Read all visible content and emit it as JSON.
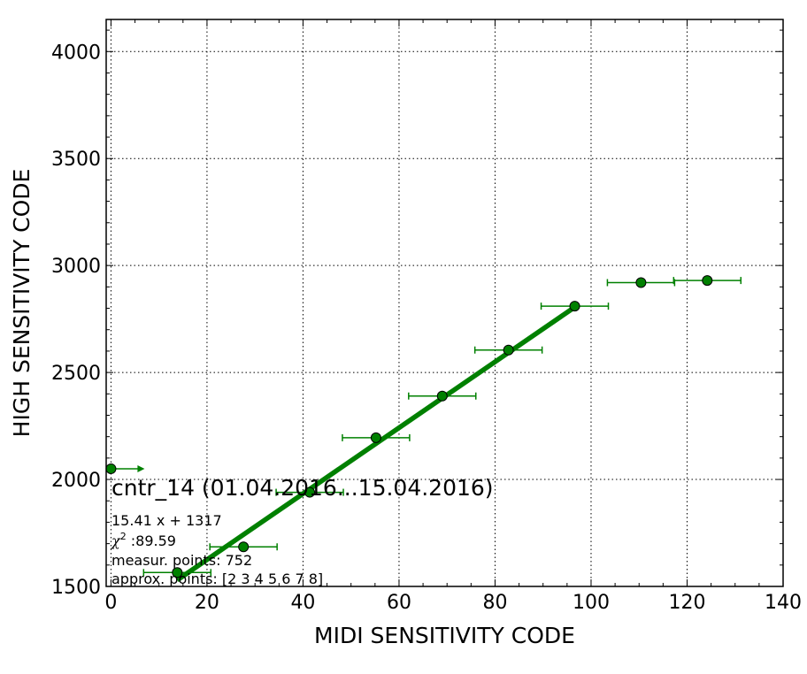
{
  "chart_data": {
    "type": "scatter",
    "title": "",
    "xlabel": "MIDI SENSITIVITY CODE",
    "ylabel": "HIGH SENSITIVITY CODE",
    "xlim": [
      -1,
      140
    ],
    "ylim": [
      1500,
      4150
    ],
    "xticks": [
      0,
      20,
      40,
      60,
      80,
      100,
      120,
      140
    ],
    "yticks": [
      1500,
      2000,
      2500,
      3000,
      3500,
      4000
    ],
    "grid": true,
    "legend": "none",
    "series": [
      {
        "marker": "circle",
        "color": "#008000",
        "points": [
          {
            "x": 0.0,
            "y": 2050,
            "xerr": 7,
            "arrow": "right"
          },
          {
            "x": 13.8,
            "y": 1565,
            "xerr": 7
          },
          {
            "x": 27.6,
            "y": 1685,
            "xerr": 7
          },
          {
            "x": 41.4,
            "y": 1940,
            "xerr": 7
          },
          {
            "x": 55.2,
            "y": 2195,
            "xerr": 7
          },
          {
            "x": 69.0,
            "y": 2390,
            "xerr": 7
          },
          {
            "x": 82.8,
            "y": 2605,
            "xerr": 7
          },
          {
            "x": 96.6,
            "y": 2810,
            "xerr": 7
          },
          {
            "x": 110.4,
            "y": 2920,
            "xerr": 7
          },
          {
            "x": 124.2,
            "y": 2930,
            "xerr": 7
          }
        ]
      }
    ],
    "fit": {
      "slope": 15.41,
      "intercept": 1317,
      "x_range": [
        13.8,
        96.6
      ],
      "color": "#008000"
    },
    "annotations": {
      "title_text": "cntr_14 (01.04.2016...15.04.2016)",
      "equation": "15.41 x + 1317",
      "chi_symbol": "χ",
      "chi_power": "2",
      "chi_value": " :89.59",
      "measur_points": "measur. points: 752",
      "approx_points": "approx. points: [2 3 4 5 6 7 8]"
    }
  }
}
